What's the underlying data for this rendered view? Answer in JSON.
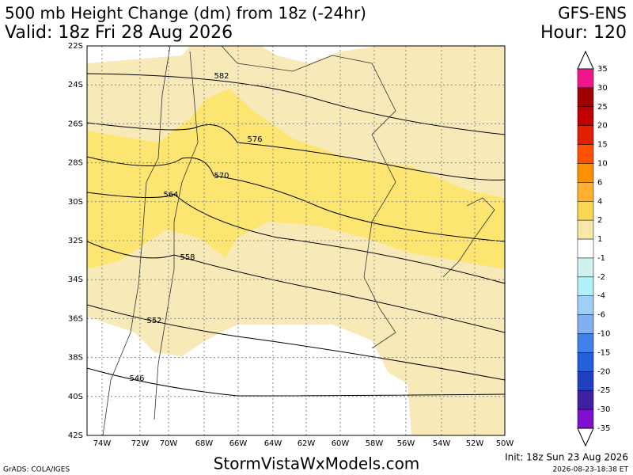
{
  "header": {
    "title": "500 mb Height Change (dm) from 18z (-24hr)",
    "valid": "Valid: 18z Fri 28 Aug 2026",
    "model": "GFS-ENS",
    "hour": "Hour: 120"
  },
  "map": {
    "lat_labels": [
      "22S",
      "24S",
      "26S",
      "28S",
      "30S",
      "32S",
      "34S",
      "36S",
      "38S",
      "40S",
      "42S"
    ],
    "lon_labels": [
      "74W",
      "72W",
      "70W",
      "68W",
      "66W",
      "64W",
      "62W",
      "60W",
      "58W",
      "56W",
      "54W",
      "52W",
      "50W"
    ],
    "contour_labels": [
      "582",
      "576",
      "570",
      "564",
      "558",
      "552",
      "546"
    ]
  },
  "colorbar": {
    "labels": [
      "35",
      "30",
      "25",
      "20",
      "15",
      "10",
      "6",
      "4",
      "2",
      "1",
      "-1",
      "-2",
      "-4",
      "-6",
      "-10",
      "-15",
      "-20",
      "-25",
      "-30",
      "-35"
    ],
    "colors": [
      "#f0168a",
      "#a00000",
      "#c00000",
      "#e02000",
      "#ff5000",
      "#ff9000",
      "#ffb030",
      "#fbd650",
      "#f8e8a8",
      "#ffffff",
      "#d0f0f0",
      "#b0f0f8",
      "#a0d0f8",
      "#80b0f0",
      "#4080e8",
      "#2060d8",
      "#2040c0",
      "#4020a0",
      "#8010d0"
    ]
  },
  "footer": {
    "credit": "GrADS: COLA/IGES",
    "site": "StormVistaWxModels.com",
    "init": "Init: 18z Sun 23 Aug 2026",
    "timestamp": "2026-08-23-18:38 ET"
  }
}
